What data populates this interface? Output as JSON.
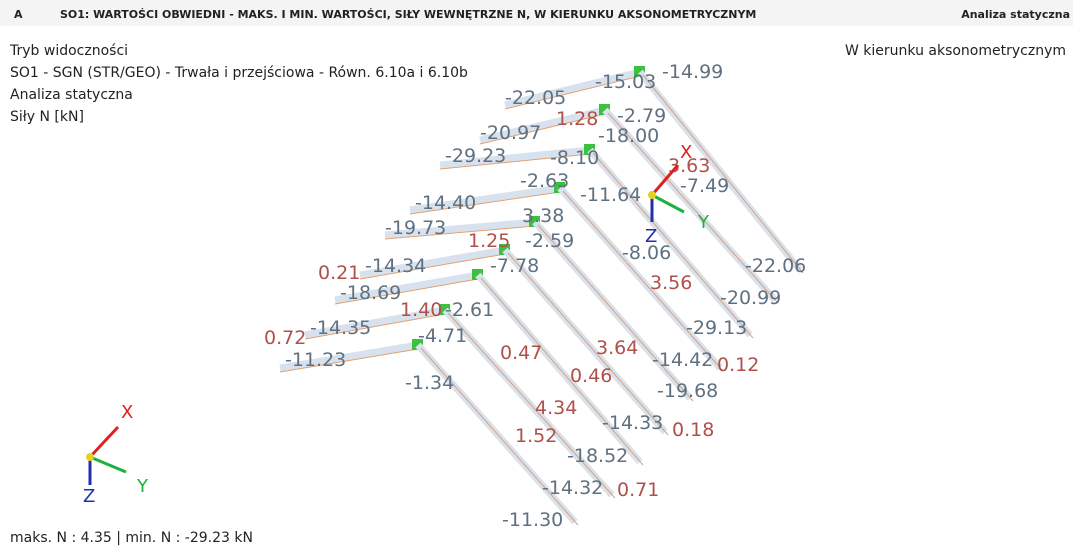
{
  "header": {
    "code": "A",
    "title": "SO1: WARTOŚCI OBWIEDNI - MAKS. I MIN. WARTOŚCI, SIŁY WEWNĘTRZNE N, W KIERUNKU AKSONOMETRYCZNYM",
    "right": "Analiza statyczna"
  },
  "info": [
    "Tryb widoczności",
    "SO1 - SGN (STR/GEO) - Trwała i przejściowa - Równ. 6.10a i 6.10b",
    "Analiza statyczna",
    "Siły N [kN]"
  ],
  "view_direction": "W kierunku aksonometrycznym",
  "labels": [
    {
      "text": "-15.03",
      "color": "#5f7080"
    },
    {
      "text": "-14.99",
      "color": "#5f7080"
    },
    {
      "text": "-22.05",
      "color": "#5f7080"
    },
    {
      "text": "1.28",
      "color": "#b0504a"
    },
    {
      "text": "-2.79",
      "color": "#5f7080"
    },
    {
      "text": "-20.97",
      "color": "#5f7080"
    },
    {
      "text": "-18.00",
      "color": "#5f7080"
    },
    {
      "text": "-29.23",
      "color": "#5f7080"
    },
    {
      "text": "-8.10",
      "color": "#5f7080"
    },
    {
      "text": "3.63",
      "color": "#b0504a"
    },
    {
      "text": "-2.63",
      "color": "#5f7080"
    },
    {
      "text": "-11.64",
      "color": "#5f7080"
    },
    {
      "text": "-7.49",
      "color": "#5f7080"
    },
    {
      "text": "-14.40",
      "color": "#5f7080"
    },
    {
      "text": "3.38",
      "color": "#5f7080"
    },
    {
      "text": "-19.73",
      "color": "#5f7080"
    },
    {
      "text": "1.25",
      "color": "#b0504a"
    },
    {
      "text": "-2.59",
      "color": "#5f7080"
    },
    {
      "text": "-8.06",
      "color": "#5f7080"
    },
    {
      "text": "-22.06",
      "color": "#5f7080"
    },
    {
      "text": "0.21",
      "color": "#b0504a"
    },
    {
      "text": "-14.34",
      "color": "#5f7080"
    },
    {
      "text": "-7.78",
      "color": "#5f7080"
    },
    {
      "text": "3.56",
      "color": "#b0504a"
    },
    {
      "text": "-18.69",
      "color": "#5f7080"
    },
    {
      "text": "-20.99",
      "color": "#5f7080"
    },
    {
      "text": "1.40",
      "color": "#b0504a"
    },
    {
      "text": "-2.61",
      "color": "#5f7080"
    },
    {
      "text": "0.72",
      "color": "#b0504a"
    },
    {
      "text": "-14.35",
      "color": "#5f7080"
    },
    {
      "text": "-4.71",
      "color": "#5f7080"
    },
    {
      "text": "-29.13",
      "color": "#5f7080"
    },
    {
      "text": "3.64",
      "color": "#b0504a"
    },
    {
      "text": "-11.23",
      "color": "#5f7080"
    },
    {
      "text": "0.47",
      "color": "#b0504a"
    },
    {
      "text": "-14.42",
      "color": "#5f7080"
    },
    {
      "text": "0.12",
      "color": "#b0504a"
    },
    {
      "text": "0.46",
      "color": "#b0504a"
    },
    {
      "text": "-1.34",
      "color": "#5f7080"
    },
    {
      "text": "-19.68",
      "color": "#5f7080"
    },
    {
      "text": "4.34",
      "color": "#b0504a"
    },
    {
      "text": "-14.33",
      "color": "#5f7080"
    },
    {
      "text": "0.18",
      "color": "#b0504a"
    },
    {
      "text": "1.52",
      "color": "#b0504a"
    },
    {
      "text": "-18.52",
      "color": "#5f7080"
    },
    {
      "text": "-14.32",
      "color": "#5f7080"
    },
    {
      "text": "0.71",
      "color": "#b0504a"
    },
    {
      "text": "-11.30",
      "color": "#5f7080"
    }
  ],
  "axes": {
    "x": "X",
    "y": "Y",
    "z": "Z"
  },
  "footer": "maks. N : 4.35 | min. N : -29.23 kN"
}
